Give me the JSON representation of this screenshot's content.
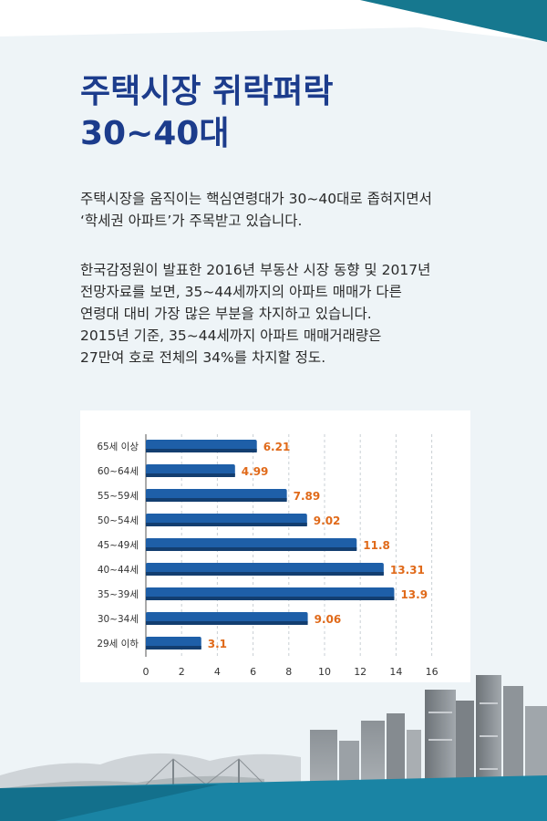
{
  "headline": {
    "line1": "주택시장 쥐락펴락",
    "line2": "30~40대"
  },
  "body": {
    "paragraph1_line1": "주택시장을 움직이는 핵심연령대가 30~40대로 좁혀지면서",
    "paragraph1_line2": "‘학세권 아파트’가 주목받고 있습니다.",
    "paragraph2_line1": "한국감정원이 발표한 2016년 부동산 시장 동향 및 2017년",
    "paragraph2_line2": "전망자료를 보면, 35~44세까지의 아파트 매매가 다른",
    "paragraph2_line3": "연령대 대비 가장 많은 부분을 차지하고 있습니다.",
    "paragraph2_line4": "2015년 기준, 35~44세까지 아파트 매매거래량은",
    "paragraph2_line5": "27만여 호로 전체의 34%를 차지할 정도."
  },
  "colors": {
    "title": "#1c3c8c",
    "bar": "#1e5fa8",
    "bar_dark": "#133e70",
    "value_label": "#e06a1a",
    "band": "#1a84a4"
  },
  "chart_data": {
    "type": "bar",
    "orientation": "horizontal",
    "categories": [
      "65세 이상",
      "60~64세",
      "55~59세",
      "50~54세",
      "45~49세",
      "40~44세",
      "35~39세",
      "30~34세",
      "29세 이하"
    ],
    "values": [
      6.21,
      4.99,
      7.89,
      9.02,
      11.8,
      13.31,
      13.9,
      9.06,
      3.1
    ],
    "value_labels": [
      "6.21",
      "4.99",
      "7.89",
      "9.02",
      "11.8",
      "13.31",
      "13.9",
      "9.06",
      "3.1"
    ],
    "x_ticks": [
      "0",
      "2",
      "4",
      "6",
      "8",
      "10",
      "12",
      "14",
      "16"
    ],
    "xlim": [
      0,
      16
    ],
    "grid": "vertical dashed"
  }
}
